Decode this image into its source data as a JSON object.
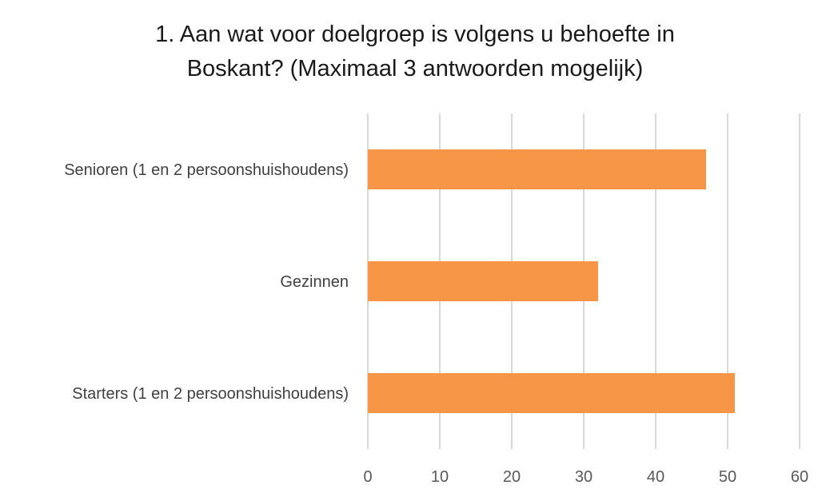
{
  "chart_data": {
    "type": "bar",
    "orientation": "horizontal",
    "title_lines": [
      "1. Aan wat voor doelgroep is volgens u behoefte in",
      "Boskant?  (Maximaal 3 antwoorden mogelijk)"
    ],
    "categories": [
      "Senioren (1 en 2 persoonshuishoudens)",
      "Gezinnen",
      "Starters (1 en 2 persoonshuishoudens)"
    ],
    "values": [
      47,
      32,
      51
    ],
    "xlim": [
      0,
      60
    ],
    "xticks": [
      0,
      10,
      20,
      30,
      40,
      50,
      60
    ],
    "xtick_labels": [
      "0",
      "10",
      "20",
      "30",
      "40",
      "50",
      "60"
    ],
    "grid": "vertical",
    "legend": "none",
    "bar_color": "#F79646",
    "grid_color": "#D9D9D9"
  }
}
